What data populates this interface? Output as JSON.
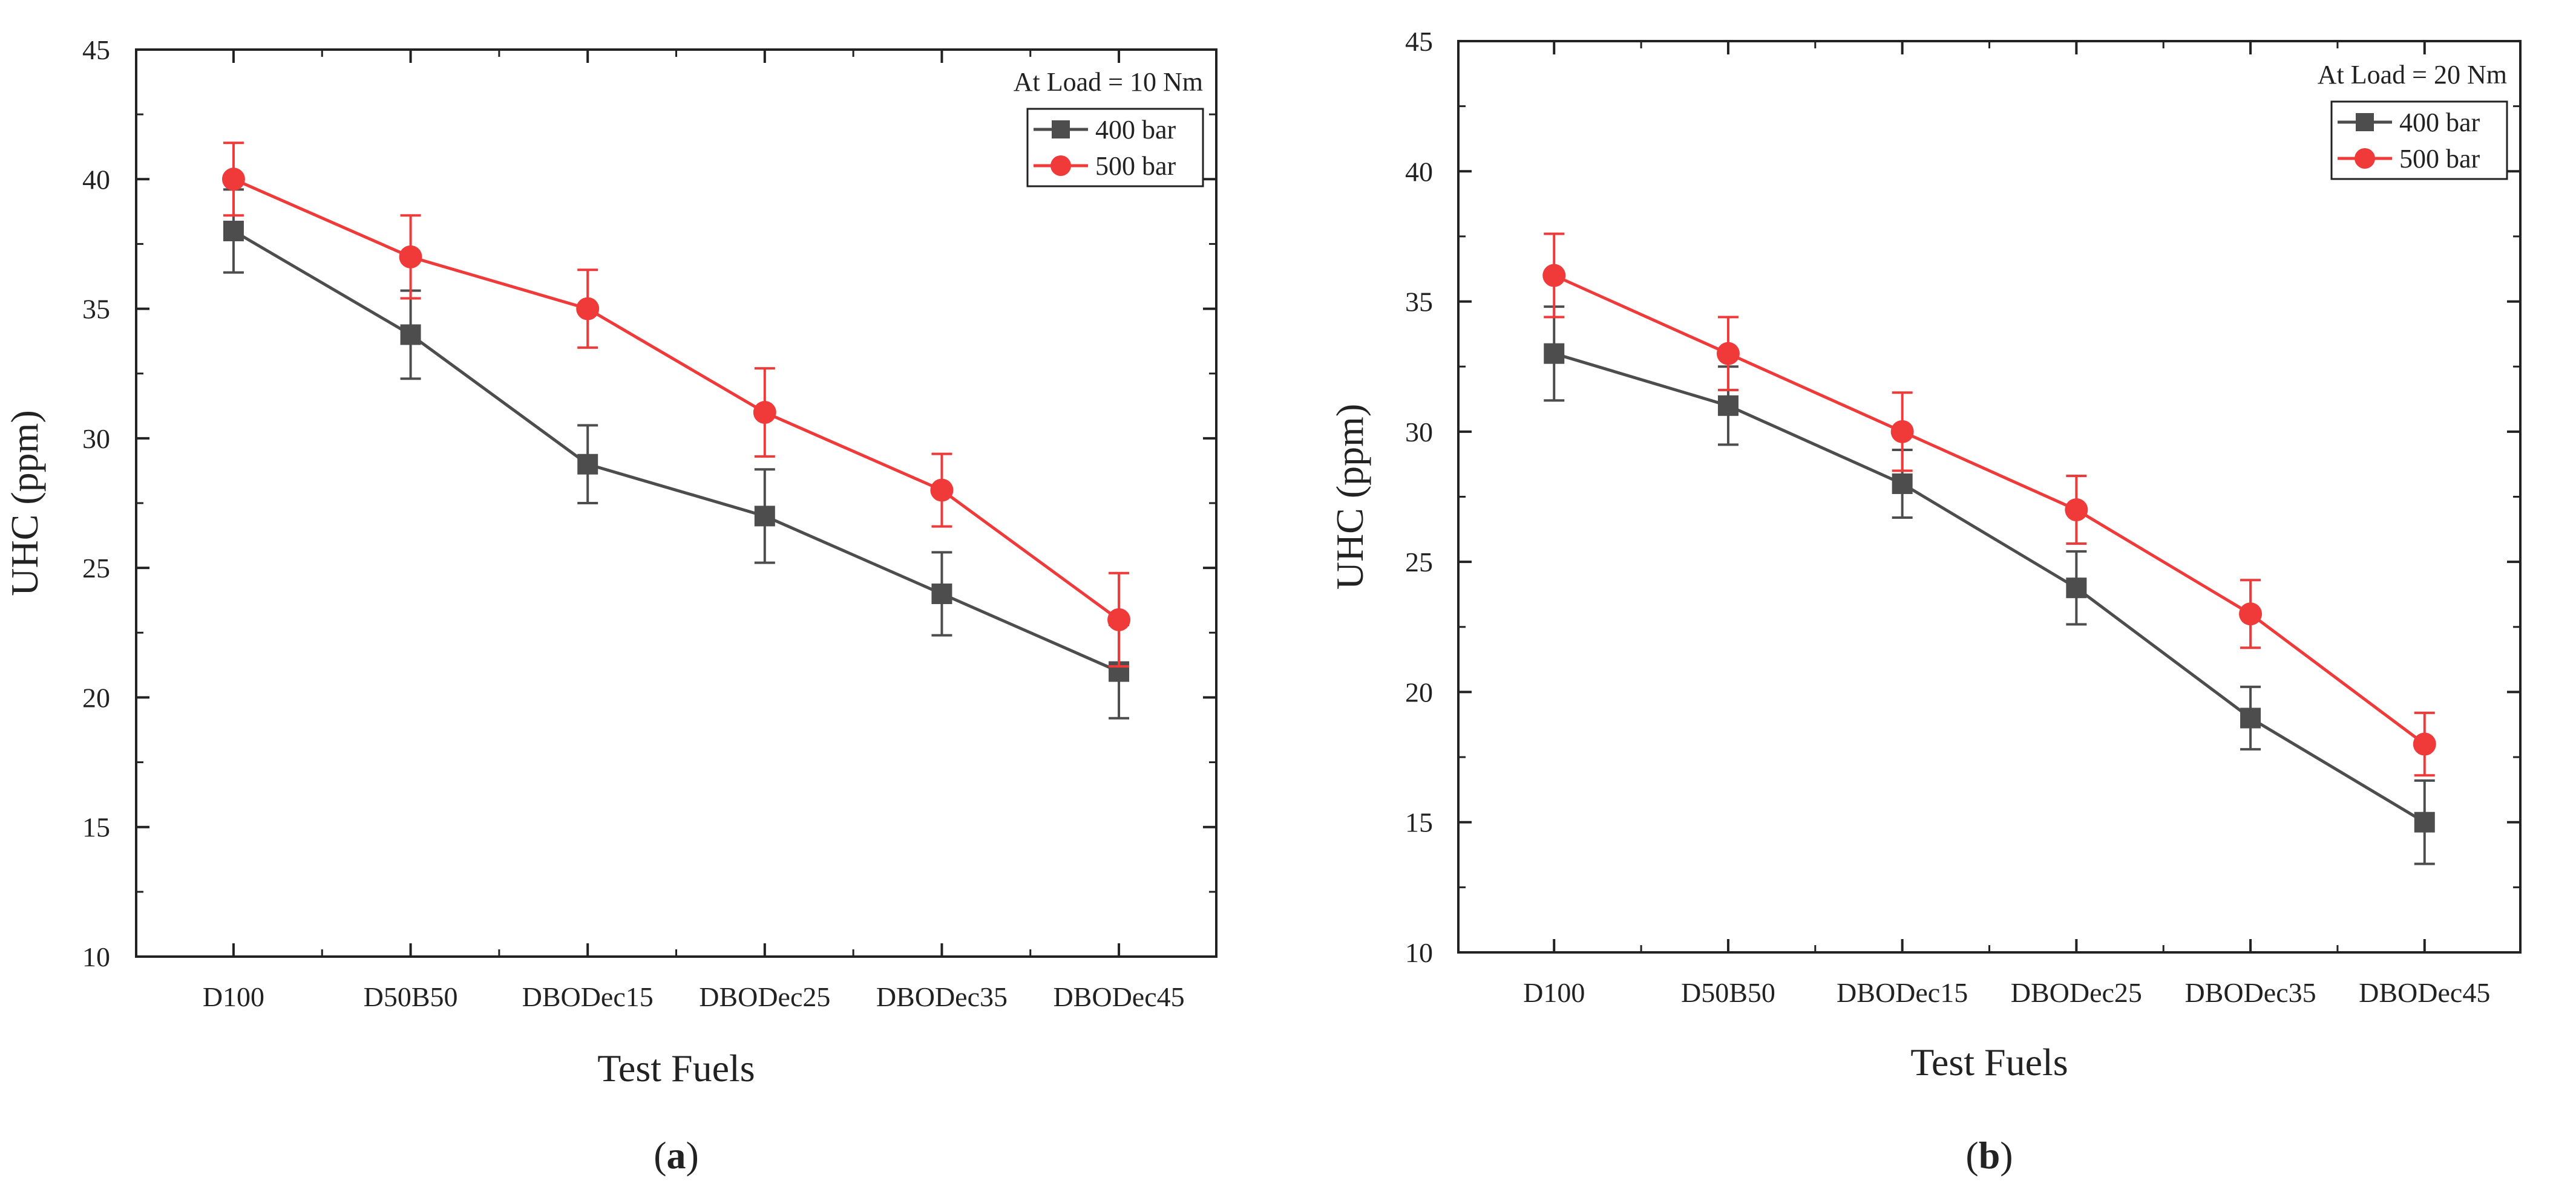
{
  "chart_data": [
    {
      "type": "line",
      "panel_label": "a",
      "caption_open": "(",
      "caption_close": ")",
      "annotation": "At Load = 10 Nm",
      "xlabel": "Test Fuels",
      "ylabel": "UHC (ppm)",
      "ylim": [
        10,
        45
      ],
      "yticks": [
        10,
        15,
        20,
        25,
        30,
        35,
        40,
        45
      ],
      "categories": [
        "D100",
        "D50B50",
        "DBODec15",
        "DBODec25",
        "DBODec35",
        "DBODec45"
      ],
      "series": [
        {
          "name": "400 bar",
          "color": "#4d4d4d",
          "marker": "square",
          "values": [
            38,
            34,
            29,
            27,
            24,
            21
          ],
          "errors": [
            1.6,
            1.7,
            1.5,
            1.8,
            1.6,
            1.8
          ]
        },
        {
          "name": "500 bar",
          "color": "#f03a3a",
          "marker": "circle",
          "values": [
            40,
            37,
            35,
            31,
            28,
            23
          ],
          "errors": [
            1.4,
            1.6,
            1.5,
            1.7,
            1.4,
            1.8
          ]
        }
      ],
      "legend_position": "top-right",
      "grid": false
    },
    {
      "type": "line",
      "panel_label": "b",
      "caption_open": "(",
      "caption_close": ")",
      "annotation": "At Load = 20 Nm",
      "xlabel": "Test Fuels",
      "ylabel": "UHC (ppm)",
      "ylim": [
        10,
        45
      ],
      "yticks": [
        10,
        15,
        20,
        25,
        30,
        35,
        40,
        45
      ],
      "categories": [
        "D100",
        "D50B50",
        "DBODec15",
        "DBODec25",
        "DBODec35",
        "DBODec45"
      ],
      "series": [
        {
          "name": "400 bar",
          "color": "#4d4d4d",
          "marker": "square",
          "values": [
            33,
            31,
            28,
            24,
            19,
            15
          ],
          "errors": [
            1.8,
            1.5,
            1.3,
            1.4,
            1.2,
            1.6
          ]
        },
        {
          "name": "500 bar",
          "color": "#f03a3a",
          "marker": "circle",
          "values": [
            36,
            33,
            30,
            27,
            23,
            18
          ],
          "errors": [
            1.6,
            1.4,
            1.5,
            1.3,
            1.3,
            1.2
          ]
        }
      ],
      "legend_position": "top-right",
      "grid": false
    }
  ]
}
